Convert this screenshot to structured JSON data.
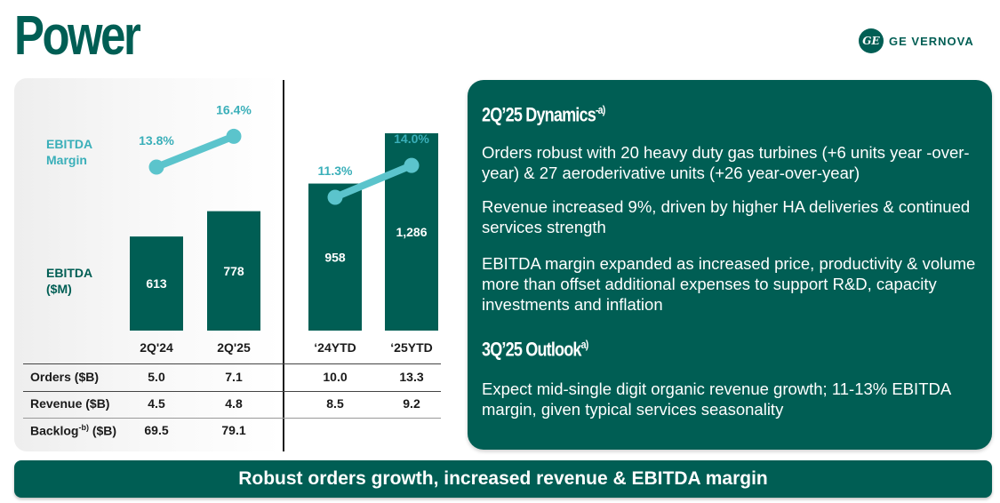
{
  "header": {
    "title": "Power",
    "brand": "GE VERNOVA",
    "brand_mark": "GE"
  },
  "chart_data": {
    "type": "bar",
    "categories": [
      "2Q'24",
      "2Q'25",
      "‘24YTD",
      "‘25YTD"
    ],
    "groups": [
      [
        "2Q'24",
        "2Q'25"
      ],
      [
        "‘24YTD",
        "‘25YTD"
      ]
    ],
    "series": [
      {
        "name": "EBITDA ($M)",
        "type": "bar",
        "values": [
          613,
          778,
          958,
          1286
        ],
        "labels": [
          "613",
          "778",
          "958",
          "1,286"
        ]
      },
      {
        "name": "EBITDA Margin",
        "type": "line",
        "values": [
          13.8,
          16.4,
          11.3,
          14.0
        ],
        "labels": [
          "13.8%",
          "16.4%",
          "11.3%",
          "14.0%"
        ]
      }
    ],
    "axis_labels": {
      "ebitda": "EBITDA ($M)",
      "margin": "EBITDA Margin"
    },
    "colors": {
      "bar": "#005E54",
      "line": "#5BC4CC",
      "label": "#3AAFB9"
    }
  },
  "table": {
    "rows": [
      {
        "label": "Orders ($B)",
        "values": [
          "5.0",
          "7.1",
          "10.0",
          "13.3"
        ]
      },
      {
        "label": "Revenue ($B)",
        "values": [
          "4.5",
          "4.8",
          "8.5",
          "9.2"
        ]
      },
      {
        "label": "Backlog",
        "sup": "-b)",
        "suffix": " ($B)",
        "values": [
          "69.5",
          "79.1",
          "",
          ""
        ]
      }
    ]
  },
  "dynamics": {
    "title": "2Q’25 Dynamics",
    "note": "-a)",
    "bullets": [
      "Orders robust with 20 heavy duty gas turbines (+6 units year -over-year) & 27 aeroderivative units (+26 year-over-year)",
      "Revenue increased 9%, driven by higher HA deliveries & continued services strength",
      "EBITDA margin expanded as increased price, productivity & volume more than offset additional expenses to support R&D, capacity investments and inflation"
    ]
  },
  "outlook": {
    "title": "3Q’25 Outlook",
    "note": "a)",
    "bullets": [
      "Expect mid-single digit organic revenue growth; 11-13% EBITDA margin, given typical services seasonality"
    ]
  },
  "footer": {
    "text": "Robust orders growth, increased revenue & EBITDA margin"
  },
  "colors": {
    "brand": "#005E54",
    "accent": "#5BC4CC"
  }
}
